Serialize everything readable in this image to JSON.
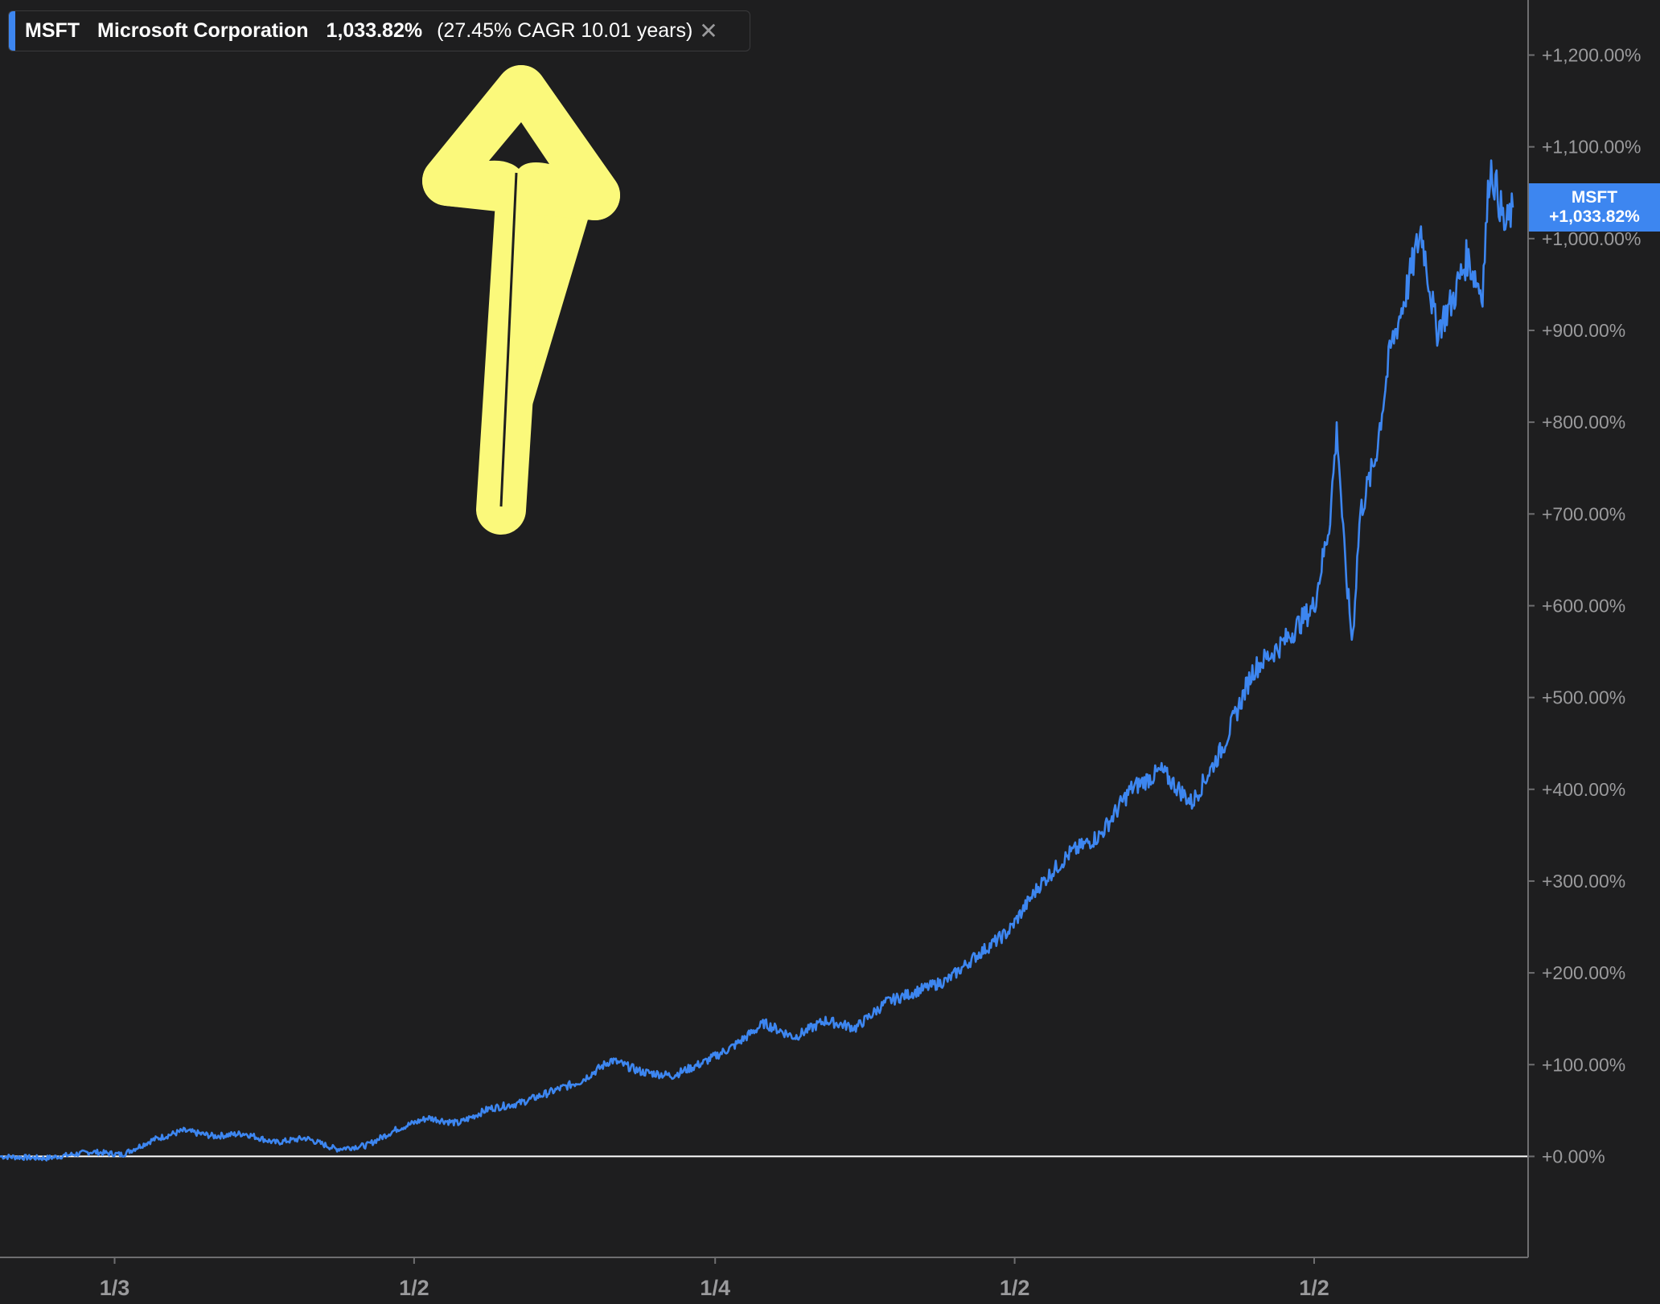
{
  "legend": {
    "ticker": "MSFT",
    "name": "Microsoft Corporation",
    "value": "1,033.82%",
    "cagr": "(27.45% CAGR 10.01 years)",
    "close_icon": "close-icon"
  },
  "last_label": {
    "ticker": "MSFT",
    "value": "+1,033.82%"
  },
  "annotation": {
    "icon": "up-arrow-icon",
    "color": "#fbf97b"
  },
  "chart_data": {
    "type": "line",
    "series": [
      {
        "name": "MSFT",
        "color": "#3d86f0",
        "points": [
          [
            0,
            0
          ],
          [
            0.03,
            -2
          ],
          [
            0.06,
            5
          ],
          [
            0.08,
            2
          ],
          [
            0.1,
            18
          ],
          [
            0.12,
            28
          ],
          [
            0.14,
            22
          ],
          [
            0.16,
            25
          ],
          [
            0.18,
            15
          ],
          [
            0.2,
            20
          ],
          [
            0.22,
            8
          ],
          [
            0.24,
            12
          ],
          [
            0.26,
            30
          ],
          [
            0.28,
            42
          ],
          [
            0.3,
            36
          ],
          [
            0.32,
            52
          ],
          [
            0.34,
            58
          ],
          [
            0.36,
            70
          ],
          [
            0.38,
            82
          ],
          [
            0.4,
            105
          ],
          [
            0.42,
            92
          ],
          [
            0.44,
            88
          ],
          [
            0.46,
            102
          ],
          [
            0.48,
            120
          ],
          [
            0.5,
            145
          ],
          [
            0.52,
            130
          ],
          [
            0.54,
            148
          ],
          [
            0.56,
            140
          ],
          [
            0.58,
            168
          ],
          [
            0.6,
            180
          ],
          [
            0.62,
            192
          ],
          [
            0.64,
            220
          ],
          [
            0.66,
            245
          ],
          [
            0.68,
            295
          ],
          [
            0.7,
            330
          ],
          [
            0.72,
            350
          ],
          [
            0.74,
            400
          ],
          [
            0.76,
            420
          ],
          [
            0.78,
            385
          ],
          [
            0.8,
            445
          ],
          [
            0.82,
            530
          ],
          [
            0.84,
            560
          ],
          [
            0.86,
            600
          ],
          [
            0.87,
            690
          ],
          [
            0.875,
            795
          ],
          [
            0.88,
            650
          ],
          [
            0.885,
            560
          ],
          [
            0.89,
            700
          ],
          [
            0.9,
            760
          ],
          [
            0.91,
            880
          ],
          [
            0.92,
            940
          ],
          [
            0.93,
            1010
          ],
          [
            0.94,
            900
          ],
          [
            0.95,
            930
          ],
          [
            0.96,
            980
          ],
          [
            0.97,
            940
          ],
          [
            0.975,
            1080
          ],
          [
            0.98,
            1050
          ],
          [
            0.985,
            1010
          ],
          [
            0.99,
            1033.82
          ]
        ]
      }
    ],
    "x_ticks": [
      {
        "pos": 0.075,
        "label": "1/3"
      },
      {
        "pos": 0.271,
        "label": "1/2"
      },
      {
        "pos": 0.468,
        "label": "1/4"
      },
      {
        "pos": 0.664,
        "label": "1/2"
      },
      {
        "pos": 0.86,
        "label": "1/2"
      }
    ],
    "y_ticks": [
      {
        "value": 0,
        "label": "+0.00%"
      },
      {
        "value": 100,
        "label": "+100.00%"
      },
      {
        "value": 200,
        "label": "+200.00%"
      },
      {
        "value": 300,
        "label": "+300.00%"
      },
      {
        "value": 400,
        "label": "+400.00%"
      },
      {
        "value": 500,
        "label": "+500.00%"
      },
      {
        "value": 600,
        "label": "+600.00%"
      },
      {
        "value": 700,
        "label": "+700.00%"
      },
      {
        "value": 800,
        "label": "+800.00%"
      },
      {
        "value": 900,
        "label": "+900.00%"
      },
      {
        "value": 1000,
        "label": "+1,000.00%"
      },
      {
        "value": 1100,
        "label": "+1,100.00%"
      },
      {
        "value": 1200,
        "label": "+1,200.00%"
      }
    ],
    "ylim": [
      -110,
      1260
    ],
    "xlim": [
      0,
      1
    ],
    "baseline": 0,
    "grid": false
  }
}
